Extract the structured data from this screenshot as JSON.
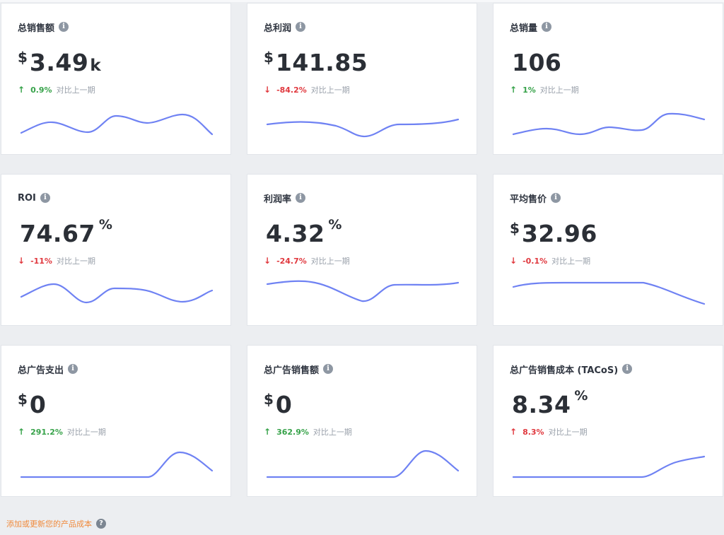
{
  "icons": {
    "info": "info-icon",
    "help": "question-circle-icon"
  },
  "colors": {
    "up": "#36a249",
    "down": "#e0383e",
    "sparkline": "#6f82f3",
    "link": "#f08a3c"
  },
  "compare_label": "对比上一期",
  "cards": [
    {
      "title": "总销售额",
      "currency": "$",
      "value": "3.49",
      "unit": "k",
      "direction": "up",
      "arrow": "↑",
      "change": "0.9%"
    },
    {
      "title": "总利润",
      "currency": "$",
      "value": "141.85",
      "unit": "",
      "direction": "down",
      "arrow": "↓",
      "change": "-84.2%"
    },
    {
      "title": "总销量",
      "currency": "",
      "value": "106",
      "unit": "",
      "direction": "up",
      "arrow": "↑",
      "change": "1%"
    },
    {
      "title": "ROI",
      "currency": "",
      "value": "74.67",
      "unit": "%",
      "direction": "down",
      "arrow": "↓",
      "change": "-11%"
    },
    {
      "title": "利润率",
      "currency": "",
      "value": "4.32",
      "unit": "%",
      "direction": "down",
      "arrow": "↓",
      "change": "-24.7%"
    },
    {
      "title": "平均售价",
      "currency": "$",
      "value": "32.96",
      "unit": "",
      "direction": "down",
      "arrow": "↓",
      "change": "-0.1%"
    },
    {
      "title": "总广告支出",
      "currency": "$",
      "value": "0",
      "unit": "",
      "direction": "up",
      "arrow": "↑",
      "change": "291.2%"
    },
    {
      "title": "总广告销售额",
      "currency": "$",
      "value": "0",
      "unit": "",
      "direction": "up",
      "arrow": "↑",
      "change": "362.9%"
    },
    {
      "title": "总广告销售成本 (TACoS)",
      "currency": "",
      "value": "8.34",
      "unit": "%",
      "direction": "up",
      "arrow": "↑",
      "change": "8.3%"
    }
  ],
  "footer": {
    "link": "添加或更新您的产品成本"
  }
}
